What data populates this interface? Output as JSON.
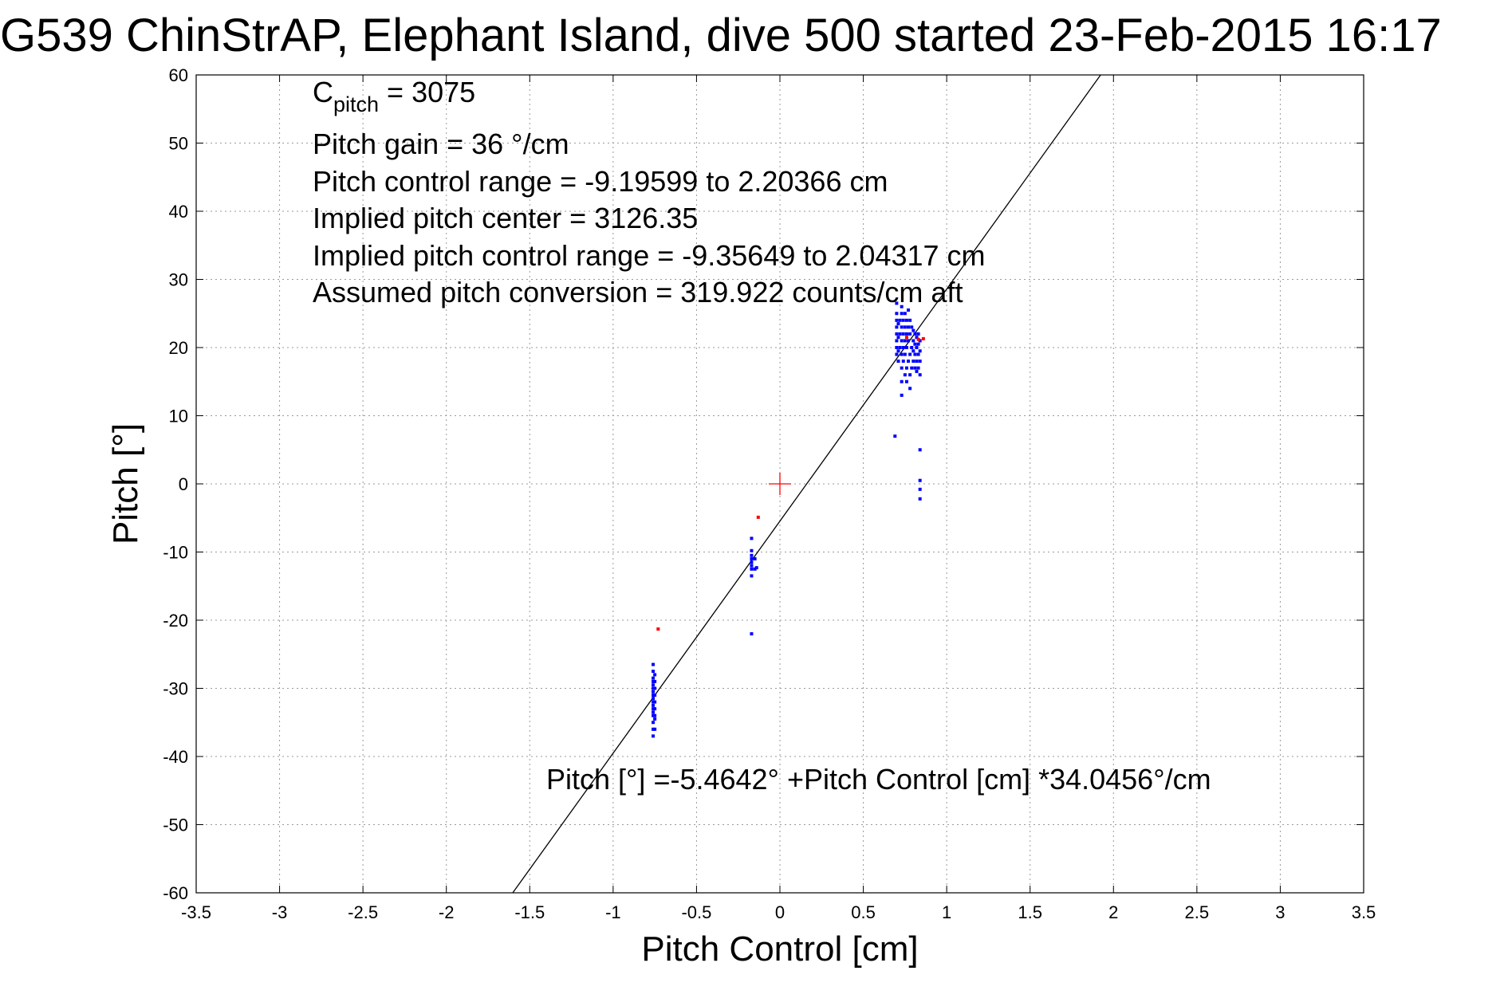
{
  "chart_data": {
    "type": "scatter",
    "title": "G539 ChinStrAP, Elephant Island, dive 500 started 23-Feb-2015 16:17",
    "xlabel": "Pitch Control [cm]",
    "ylabel": "Pitch [°]",
    "xlim": [
      -3.5,
      3.5
    ],
    "ylim": [
      -60,
      60
    ],
    "xticks": [
      -3.5,
      -3,
      -2.5,
      -2,
      -1.5,
      -1,
      -0.5,
      0,
      0.5,
      1,
      1.5,
      2,
      2.5,
      3,
      3.5
    ],
    "yticks": [
      -60,
      -50,
      -40,
      -30,
      -20,
      -10,
      0,
      10,
      20,
      30,
      40,
      50,
      60
    ],
    "grid": true,
    "annotations": {
      "c_pitch_label": "C",
      "c_pitch_sub": "pitch",
      "c_pitch_value": " = 3075",
      "lines": [
        "Pitch gain = 36 °/cm",
        "Pitch control range = -9.19599 to 2.20366 cm",
        "Implied pitch center = 3126.35",
        "Implied pitch control range = -9.35649 to 2.04317 cm",
        "Assumed pitch conversion = 319.922 counts/cm aft"
      ],
      "fit_equation": "Pitch [°] =-5.4642° +Pitch Control [cm] *34.0456°/cm"
    },
    "fit_line": {
      "intercept": -5.4642,
      "slope": 34.0456,
      "color": "#000000"
    },
    "center_marker": {
      "x": 0,
      "y": 0,
      "color": "#ff0000"
    },
    "series": [
      {
        "color": "#0000ff",
        "points": [
          [
            -0.76,
            -26.5
          ],
          [
            -0.76,
            -27.5
          ],
          [
            -0.76,
            -28.5
          ],
          [
            -0.76,
            -29
          ],
          [
            -0.76,
            -29.5
          ],
          [
            -0.76,
            -30
          ],
          [
            -0.76,
            -30.5
          ],
          [
            -0.76,
            -31
          ],
          [
            -0.76,
            -31.5
          ],
          [
            -0.76,
            -32
          ],
          [
            -0.76,
            -32.5
          ],
          [
            -0.76,
            -33
          ],
          [
            -0.76,
            -33.5
          ],
          [
            -0.76,
            -34
          ],
          [
            -0.76,
            -35
          ],
          [
            -0.76,
            -36
          ],
          [
            -0.76,
            -37
          ],
          [
            -0.75,
            -28
          ],
          [
            -0.75,
            -29
          ],
          [
            -0.75,
            -30
          ],
          [
            -0.75,
            -31
          ],
          [
            -0.75,
            -32
          ],
          [
            -0.75,
            -33
          ],
          [
            -0.75,
            -34
          ],
          [
            -0.75,
            -34.5
          ],
          [
            -0.75,
            -36
          ],
          [
            -0.17,
            -8
          ],
          [
            -0.17,
            -9.8
          ],
          [
            -0.17,
            -10.5
          ],
          [
            -0.17,
            -11
          ],
          [
            -0.17,
            -11.5
          ],
          [
            -0.17,
            -12
          ],
          [
            -0.17,
            -12.5
          ],
          [
            -0.17,
            -13.5
          ],
          [
            -0.17,
            -22
          ],
          [
            -0.15,
            -11
          ],
          [
            -0.15,
            -12.5
          ],
          [
            -0.14,
            -12.3
          ],
          [
            0.69,
            7
          ],
          [
            0.7,
            19
          ],
          [
            0.7,
            20
          ],
          [
            0.7,
            21
          ],
          [
            0.7,
            22
          ],
          [
            0.7,
            23
          ],
          [
            0.7,
            24
          ],
          [
            0.7,
            25
          ],
          [
            0.7,
            26.5
          ],
          [
            0.71,
            18
          ],
          [
            0.71,
            19.5
          ],
          [
            0.71,
            21.5
          ],
          [
            0.71,
            23.5
          ],
          [
            0.72,
            20
          ],
          [
            0.72,
            22
          ],
          [
            0.72,
            24
          ],
          [
            0.73,
            13
          ],
          [
            0.73,
            15
          ],
          [
            0.73,
            17
          ],
          [
            0.73,
            19
          ],
          [
            0.73,
            21
          ],
          [
            0.73,
            23
          ],
          [
            0.73,
            25
          ],
          [
            0.73,
            26
          ],
          [
            0.74,
            18
          ],
          [
            0.74,
            20
          ],
          [
            0.74,
            22
          ],
          [
            0.74,
            24
          ],
          [
            0.75,
            16
          ],
          [
            0.75,
            19
          ],
          [
            0.75,
            21
          ],
          [
            0.75,
            23
          ],
          [
            0.75,
            25
          ],
          [
            0.76,
            15
          ],
          [
            0.76,
            17
          ],
          [
            0.76,
            20
          ],
          [
            0.76,
            22
          ],
          [
            0.76,
            24
          ],
          [
            0.77,
            18
          ],
          [
            0.77,
            21
          ],
          [
            0.77,
            23
          ],
          [
            0.77,
            25.5
          ],
          [
            0.78,
            14
          ],
          [
            0.78,
            16
          ],
          [
            0.78,
            19
          ],
          [
            0.78,
            22
          ],
          [
            0.78,
            24
          ],
          [
            0.79,
            17
          ],
          [
            0.79,
            20
          ],
          [
            0.79,
            23
          ],
          [
            0.8,
            18
          ],
          [
            0.8,
            19.5
          ],
          [
            0.8,
            21
          ],
          [
            0.8,
            22.5
          ],
          [
            0.81,
            17
          ],
          [
            0.81,
            19
          ],
          [
            0.81,
            20.5
          ],
          [
            0.81,
            22
          ],
          [
            0.82,
            16.5
          ],
          [
            0.82,
            18
          ],
          [
            0.82,
            20
          ],
          [
            0.82,
            21.5
          ],
          [
            0.83,
            17
          ],
          [
            0.83,
            19
          ],
          [
            0.83,
            20.5
          ],
          [
            0.83,
            22
          ],
          [
            0.84,
            16
          ],
          [
            0.84,
            18
          ],
          [
            0.84,
            19.5
          ],
          [
            0.84,
            21
          ],
          [
            0.84,
            5
          ],
          [
            0.84,
            0.5
          ],
          [
            0.84,
            -0.8
          ],
          [
            0.84,
            -2.2
          ]
        ]
      },
      {
        "color": "#ff0000",
        "points": [
          [
            -0.73,
            -21.3
          ],
          [
            -0.13,
            -4.9
          ],
          [
            0.76,
            21.5
          ],
          [
            0.83,
            21.2
          ],
          [
            0.86,
            21.3
          ]
        ]
      }
    ]
  }
}
